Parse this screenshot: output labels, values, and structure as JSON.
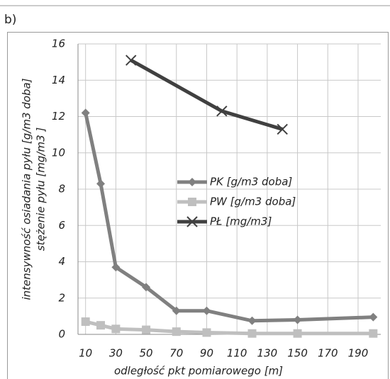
{
  "panel_label": "b)",
  "chart_data": {
    "type": "line",
    "x_label": "odległość pkt pomiarowego [m]",
    "y_label": [
      "intensywność osiadania pyłu [g/m3 doba]",
      "stężenie pyłu  [mg/m3 ]"
    ],
    "xlim": [
      5,
      205
    ],
    "xticks": [
      10,
      30,
      50,
      70,
      90,
      110,
      130,
      150,
      170,
      190
    ],
    "ylim": [
      0,
      16
    ],
    "yticks": [
      0,
      2,
      4,
      6,
      8,
      10,
      12,
      14,
      16
    ],
    "grid": true,
    "series": [
      {
        "name": "PK [g/m3 doba]",
        "color": "#808080",
        "marker": "diamond",
        "x": [
          10,
          20,
          30,
          50,
          70,
          90,
          120,
          150,
          200
        ],
        "values": [
          12.2,
          8.3,
          3.7,
          2.6,
          1.3,
          1.3,
          0.75,
          0.8,
          0.95
        ]
      },
      {
        "name": "PW [g/m3 doba]",
        "color": "#bfbfbf",
        "marker": "square",
        "x": [
          10,
          20,
          30,
          50,
          70,
          90,
          120,
          150,
          200
        ],
        "values": [
          0.7,
          0.5,
          0.3,
          0.25,
          0.15,
          0.1,
          0.05,
          0.05,
          0.05
        ]
      },
      {
        "name": "PŁ [mg/m3]",
        "color": "#404040",
        "marker": "x",
        "x": [
          40,
          100,
          140
        ],
        "values": [
          15.1,
          12.3,
          11.3
        ]
      }
    ]
  }
}
